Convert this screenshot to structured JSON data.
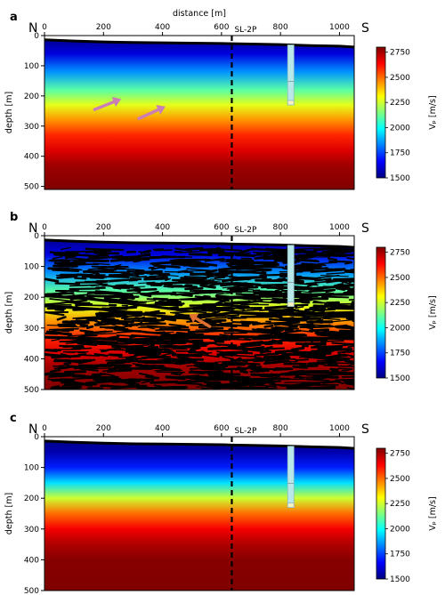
{
  "figure": {
    "top_axis_label": "distance [m]",
    "colormap": [
      "#00007f",
      "#0000ff",
      "#007fff",
      "#00ffff",
      "#7fff7f",
      "#ffff00",
      "#ff7f00",
      "#ff0000",
      "#7f0000"
    ]
  },
  "chart_data": [
    {
      "type": "heatmap",
      "panel_label": "a",
      "left_direction": "N",
      "right_direction": "S",
      "xlabel": "distance [m]",
      "ylabel": "depth [m]",
      "xlim": [
        0,
        1050
      ],
      "ylim": [
        510,
        0
      ],
      "xticks": [
        0,
        200,
        400,
        600,
        800,
        1000
      ],
      "yticks": [
        0,
        100,
        200,
        300,
        400,
        500
      ],
      "colorbar": {
        "label": "Vₚ [m/s]",
        "range": [
          1500,
          2800
        ],
        "ticks": [
          1500,
          1750,
          2000,
          2250,
          2500,
          2750
        ]
      },
      "borehole": {
        "name": "SL-2P",
        "line_x": 635,
        "well_x": 835,
        "well_bottom_depth": 230,
        "marker_depth": 152
      },
      "surface_profile": {
        "x": [
          0,
          100,
          200,
          300,
          400,
          500,
          600,
          635,
          700,
          800,
          900,
          1000,
          1050
        ],
        "depth": [
          14,
          18,
          21,
          23,
          24,
          25,
          26,
          27,
          28,
          30,
          33,
          35,
          38
        ]
      },
      "velocity_profile": {
        "depth": [
          0,
          60,
          120,
          180,
          230,
          280,
          330,
          380,
          430,
          510
        ],
        "vp": [
          1500,
          1620,
          1850,
          2100,
          2280,
          2450,
          2590,
          2680,
          2760,
          2800
        ]
      },
      "annotation_arrows": [
        {
          "x": [
            170,
            260
          ],
          "depth": [
            245,
            210
          ],
          "color": "#c97fb5"
        },
        {
          "x": [
            320,
            410
          ],
          "depth": [
            275,
            235
          ],
          "color": "#c97fb5"
        }
      ]
    },
    {
      "type": "heatmap",
      "panel_label": "b",
      "left_direction": "N",
      "right_direction": "S",
      "xlabel": "",
      "ylabel": "depth [m]",
      "xlim": [
        0,
        1050
      ],
      "ylim": [
        500,
        0
      ],
      "xticks": [
        0,
        200,
        400,
        600,
        800,
        1000
      ],
      "yticks": [
        0,
        100,
        200,
        300,
        400,
        500
      ],
      "colorbar": {
        "label": "Vₚ [m/s]",
        "range": [
          1500,
          2800
        ],
        "ticks": [
          1500,
          1750,
          2000,
          2250,
          2500,
          2750
        ]
      },
      "borehole": {
        "name": "SL-2P",
        "line_x": 635,
        "well_x": 835,
        "well_bottom_depth": 230,
        "marker_depth": 152
      },
      "surface_profile": {
        "x": [
          0,
          100,
          200,
          300,
          400,
          500,
          600,
          635,
          700,
          800,
          900,
          1000,
          1050
        ],
        "depth": [
          14,
          18,
          21,
          23,
          24,
          25,
          26,
          27,
          28,
          30,
          33,
          35,
          38
        ]
      },
      "velocity_profile": {
        "depth": [
          0,
          60,
          120,
          180,
          230,
          280,
          330,
          380,
          430,
          500
        ],
        "vp": [
          1500,
          1620,
          1850,
          2100,
          2280,
          2450,
          2590,
          2680,
          2760,
          2800
        ]
      },
      "annotation_arrows": [
        {
          "x": [
            560,
            490
          ],
          "depth": [
            295,
            255
          ],
          "color": "#e07030"
        }
      ],
      "reflector_overlay": true
    },
    {
      "type": "heatmap",
      "panel_label": "c",
      "left_direction": "N",
      "right_direction": "S",
      "xlabel": "",
      "ylabel": "depth [m]",
      "xlim": [
        0,
        1050
      ],
      "ylim": [
        500,
        0
      ],
      "xticks": [
        0,
        200,
        400,
        600,
        800,
        1000
      ],
      "yticks": [
        0,
        100,
        200,
        300,
        400,
        500
      ],
      "colorbar": {
        "label": "Vₚ [m/s]",
        "range": [
          1500,
          2800
        ],
        "ticks": [
          1500,
          1750,
          2000,
          2250,
          2500,
          2750
        ]
      },
      "borehole": {
        "name": "SL-2P",
        "line_x": 635,
        "well_x": 835,
        "well_bottom_depth": 230,
        "marker_depth": 152
      },
      "surface_profile": {
        "x": [
          0,
          100,
          200,
          300,
          400,
          500,
          600,
          635,
          700,
          800,
          900,
          1000,
          1050
        ],
        "depth": [
          14,
          18,
          21,
          23,
          24,
          25,
          26,
          27,
          28,
          30,
          33,
          35,
          38
        ]
      },
      "velocity_profile": {
        "depth": [
          0,
          50,
          100,
          150,
          200,
          250,
          300,
          350,
          400,
          500
        ],
        "vp": [
          1500,
          1560,
          1700,
          1950,
          2250,
          2500,
          2650,
          2740,
          2790,
          2800
        ]
      },
      "annotation_arrows": []
    }
  ]
}
